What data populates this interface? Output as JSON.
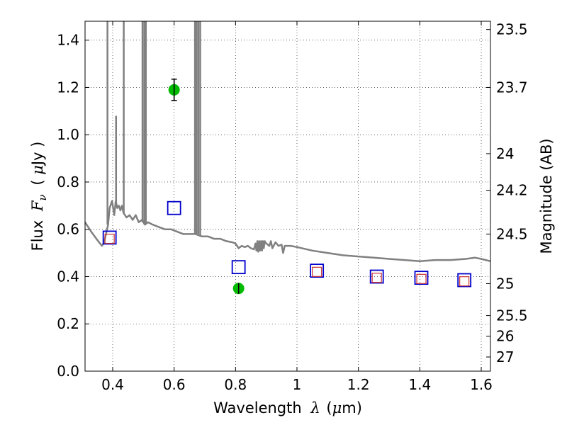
{
  "chart_data": {
    "type": "scatter",
    "xlabel_parts": {
      "word": "Wavelength",
      "sym": "λ",
      "unit_open": "(",
      "unit_mu": "μ",
      "unit_rest": "m)"
    },
    "ylabel_parts": {
      "word": "Flux",
      "sym": "F",
      "sub": "ν",
      "unit_open": "(",
      "unit_mu": "μ",
      "unit_rest": "Jy )"
    },
    "right_ylabel": "Magnitude (AB)",
    "xlim": [
      0.31,
      1.63
    ],
    "ylim": [
      0.0,
      1.48
    ],
    "grid": true,
    "x_ticks": [
      {
        "value": 0.4,
        "label": "0.4"
      },
      {
        "value": 0.6,
        "label": "0.6"
      },
      {
        "value": 0.8,
        "label": "0.8"
      },
      {
        "value": 1.0,
        "label": "1"
      },
      {
        "value": 1.2,
        "label": "1.2"
      },
      {
        "value": 1.4,
        "label": "1.4"
      },
      {
        "value": 1.6,
        "label": "1.6"
      }
    ],
    "y_ticks": [
      {
        "value": 0.0,
        "label": "0.0"
      },
      {
        "value": 0.2,
        "label": "0.2"
      },
      {
        "value": 0.4,
        "label": "0.4"
      },
      {
        "value": 0.6,
        "label": "0.6"
      },
      {
        "value": 0.8,
        "label": "0.8"
      },
      {
        "value": 1.0,
        "label": "1.0"
      },
      {
        "value": 1.2,
        "label": "1.2"
      },
      {
        "value": 1.4,
        "label": "1.4"
      }
    ],
    "right_ticks": [
      {
        "flux": 1.445,
        "label": "23.5"
      },
      {
        "flux": 1.2,
        "label": "23.7"
      },
      {
        "flux": 0.92,
        "label": "24"
      },
      {
        "flux": 0.765,
        "label": "24.2"
      },
      {
        "flux": 0.58,
        "label": "24.5"
      },
      {
        "flux": 0.37,
        "label": "25"
      },
      {
        "flux": 0.235,
        "label": "25.5"
      },
      {
        "flux": 0.148,
        "label": "26"
      },
      {
        "flux": 0.06,
        "label": "27"
      }
    ],
    "series": [
      {
        "kind": "line",
        "color": "#808080",
        "points": [
          [
            0.31,
            0.63
          ],
          [
            0.33,
            0.59
          ],
          [
            0.35,
            0.555
          ],
          [
            0.365,
            0.53
          ],
          [
            0.372,
            0.545
          ],
          [
            0.378,
            0.58
          ],
          [
            0.385,
            0.62
          ],
          [
            0.39,
            0.69
          ],
          [
            0.398,
            0.72
          ],
          [
            0.405,
            0.66
          ],
          [
            0.41,
            0.72
          ],
          [
            0.415,
            0.69
          ],
          [
            0.42,
            0.7
          ],
          [
            0.425,
            0.68
          ],
          [
            0.43,
            0.7
          ],
          [
            0.435,
            0.67
          ],
          [
            0.445,
            0.65
          ],
          [
            0.455,
            0.66
          ],
          [
            0.465,
            0.64
          ],
          [
            0.475,
            0.66
          ],
          [
            0.485,
            0.63
          ],
          [
            0.495,
            0.64
          ],
          [
            0.505,
            0.62
          ],
          [
            0.515,
            0.63
          ],
          [
            0.53,
            0.62
          ],
          [
            0.55,
            0.61
          ],
          [
            0.57,
            0.6
          ],
          [
            0.59,
            0.6
          ],
          [
            0.61,
            0.59
          ],
          [
            0.63,
            0.58
          ],
          [
            0.65,
            0.58
          ],
          [
            0.67,
            0.58
          ],
          [
            0.69,
            0.57
          ],
          [
            0.71,
            0.57
          ],
          [
            0.73,
            0.56
          ],
          [
            0.75,
            0.56
          ],
          [
            0.77,
            0.55
          ],
          [
            0.79,
            0.545
          ],
          [
            0.8,
            0.54
          ],
          [
            0.81,
            0.52
          ],
          [
            0.82,
            0.53
          ],
          [
            0.83,
            0.525
          ],
          [
            0.84,
            0.53
          ],
          [
            0.85,
            0.52
          ],
          [
            0.86,
            0.515
          ],
          [
            0.865,
            0.54
          ],
          [
            0.868,
            0.51
          ],
          [
            0.871,
            0.55
          ],
          [
            0.874,
            0.505
          ],
          [
            0.877,
            0.55
          ],
          [
            0.88,
            0.51
          ],
          [
            0.883,
            0.55
          ],
          [
            0.886,
            0.51
          ],
          [
            0.889,
            0.55
          ],
          [
            0.892,
            0.52
          ],
          [
            0.895,
            0.55
          ],
          [
            0.9,
            0.54
          ],
          [
            0.91,
            0.53
          ],
          [
            0.915,
            0.55
          ],
          [
            0.92,
            0.52
          ],
          [
            0.93,
            0.545
          ],
          [
            0.94,
            0.53
          ],
          [
            0.95,
            0.535
          ],
          [
            0.955,
            0.5
          ],
          [
            0.96,
            0.53
          ],
          [
            0.98,
            0.53
          ],
          [
            1.0,
            0.525
          ],
          [
            1.05,
            0.51
          ],
          [
            1.1,
            0.5
          ],
          [
            1.15,
            0.49
          ],
          [
            1.2,
            0.485
          ],
          [
            1.25,
            0.48
          ],
          [
            1.3,
            0.475
          ],
          [
            1.35,
            0.47
          ],
          [
            1.4,
            0.465
          ],
          [
            1.45,
            0.47
          ],
          [
            1.5,
            0.47
          ],
          [
            1.55,
            0.475
          ],
          [
            1.58,
            0.48
          ],
          [
            1.6,
            0.475
          ],
          [
            1.63,
            0.465
          ]
        ],
        "spikes": [
          {
            "x": 0.383,
            "from": 0.62,
            "to": 1.48
          },
          {
            "x": 0.411,
            "from": 0.7,
            "to": 1.08
          },
          {
            "x": 0.436,
            "from": 0.67,
            "to": 1.48
          },
          {
            "x": 0.497,
            "from": 0.63,
            "to": 1.48
          },
          {
            "x": 0.503,
            "from": 0.62,
            "to": 1.48
          },
          {
            "x": 0.508,
            "from": 0.62,
            "to": 1.48
          },
          {
            "x": 0.668,
            "from": 0.58,
            "to": 1.48
          },
          {
            "x": 0.673,
            "from": 0.58,
            "to": 1.48
          },
          {
            "x": 0.679,
            "from": 0.58,
            "to": 1.48
          },
          {
            "x": 0.685,
            "from": 0.57,
            "to": 1.48
          }
        ]
      },
      {
        "kind": "square",
        "color": "#0000cc",
        "points": [
          [
            0.39,
            0.565
          ],
          [
            0.6,
            0.69
          ],
          [
            0.81,
            0.44
          ],
          [
            1.065,
            0.425
          ],
          [
            1.26,
            0.4
          ],
          [
            1.405,
            0.395
          ],
          [
            1.545,
            0.385
          ]
        ]
      },
      {
        "kind": "square",
        "color": "#cc3333",
        "points": [
          [
            0.39,
            0.56
          ],
          [
            1.065,
            0.42
          ],
          [
            1.26,
            0.395
          ],
          [
            1.405,
            0.39
          ],
          [
            1.545,
            0.38
          ]
        ]
      },
      {
        "kind": "errorpoint",
        "color": "#00bb00",
        "points": [
          {
            "x": 0.6,
            "y": 1.19,
            "err": 0.045
          },
          {
            "x": 0.81,
            "y": 0.35,
            "err": 0.015
          }
        ]
      }
    ]
  }
}
